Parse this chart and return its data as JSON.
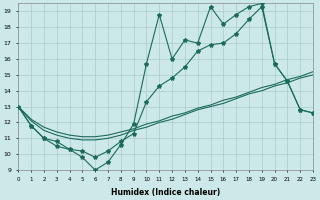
{
  "xlabel": "Humidex (Indice chaleur)",
  "x_values": [
    0,
    1,
    2,
    3,
    4,
    5,
    6,
    7,
    8,
    9,
    10,
    11,
    12,
    13,
    14,
    15,
    16,
    17,
    18,
    19,
    20,
    21,
    22,
    23
  ],
  "xlim": [
    0,
    23
  ],
  "ylim": [
    9,
    19.5
  ],
  "yticks": [
    9,
    10,
    11,
    12,
    13,
    14,
    15,
    16,
    17,
    18,
    19
  ],
  "xticks": [
    0,
    1,
    2,
    3,
    4,
    5,
    6,
    7,
    8,
    9,
    10,
    11,
    12,
    13,
    14,
    15,
    16,
    17,
    18,
    19,
    20,
    21,
    22,
    23
  ],
  "background_color": "#cce8e8",
  "grid_color": "#aacccc",
  "line_color": "#1a6b5a",
  "series1": [
    13,
    11.8,
    11.0,
    10.8,
    10.3,
    10.2,
    9.8,
    10.2,
    10.8,
    11.3,
    13.3,
    14.3,
    14.8,
    15.5,
    16.5,
    16.9,
    17.0,
    17.6,
    18.5,
    19.3,
    15.7,
    14.6,
    12.8,
    12.6
  ],
  "series2": [
    13,
    11.8,
    11.0,
    10.5,
    10.3,
    9.8,
    9.0,
    9.5,
    10.6,
    11.9,
    15.7,
    18.8,
    16.0,
    17.2,
    17.0,
    19.3,
    18.2,
    18.8,
    19.3,
    19.5,
    15.7,
    14.6,
    12.8,
    12.6
  ],
  "series3": [
    13.0,
    12.1,
    11.5,
    11.2,
    11.0,
    10.9,
    10.9,
    11.0,
    11.2,
    11.5,
    11.7,
    12.0,
    12.2,
    12.5,
    12.8,
    13.0,
    13.2,
    13.5,
    13.8,
    14.0,
    14.3,
    14.5,
    14.8,
    15.0
  ],
  "series4": [
    13.0,
    12.2,
    11.7,
    11.4,
    11.2,
    11.1,
    11.1,
    11.2,
    11.4,
    11.6,
    11.9,
    12.1,
    12.4,
    12.6,
    12.9,
    13.1,
    13.4,
    13.6,
    13.9,
    14.2,
    14.4,
    14.7,
    14.9,
    15.2
  ]
}
